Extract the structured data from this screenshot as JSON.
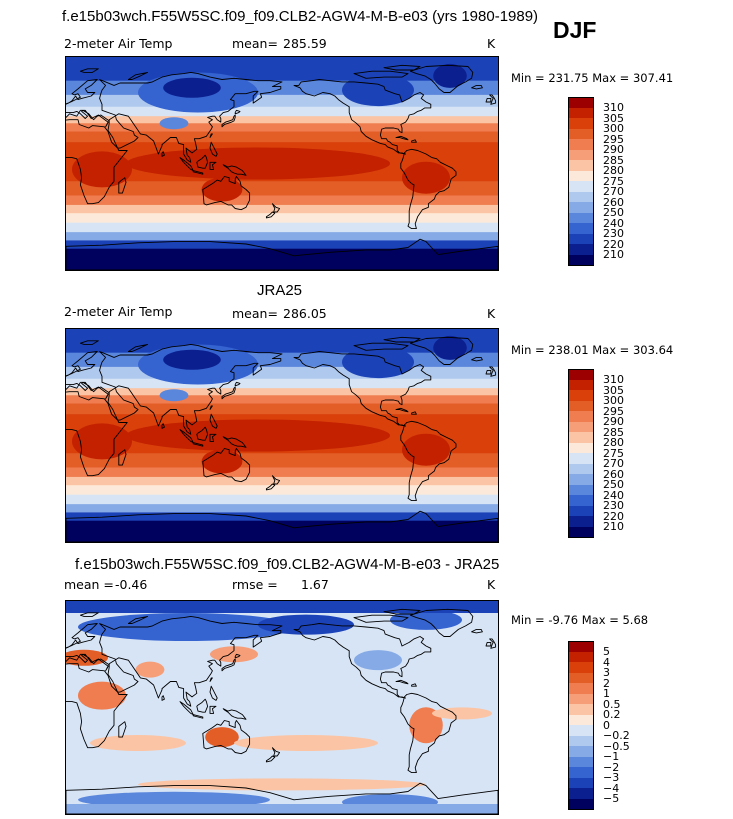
{
  "season": "DJF",
  "panels": [
    {
      "heading": "f.e15b03wch.F55W5SC.f09_f09.CLB2-AGW4-M-B-e03 (yrs 1980-1989)",
      "left_label": "2-meter Air Temp",
      "mean_label": "mean=",
      "mean_value": "285.59",
      "units": "K",
      "minmax": "Min = 231.75 Max = 307.41",
      "field": "abs"
    },
    {
      "heading": "JRA25",
      "left_label": "2-meter Air Temp",
      "mean_label": "mean=",
      "mean_value": "286.05",
      "units": "K",
      "minmax": "Min = 238.01 Max = 303.64",
      "field": "abs"
    },
    {
      "heading": "f.e15b03wch.F55W5SC.f09_f09.CLB2-AGW4-M-B-e03 - JRA25",
      "left_label": "mean =",
      "left_value": "-0.46",
      "mean_label": "rmse =",
      "mean_value": "1.67",
      "units": "K",
      "minmax": "Min =   -9.76 Max =    5.68",
      "field": "diff"
    }
  ],
  "chart_data": [
    {
      "type": "heatmap",
      "title": "2-meter Air Temp",
      "units": "K",
      "mean": 285.59,
      "min": 231.75,
      "max": 307.41,
      "colorbar_levels": [
        "310",
        "305",
        "300",
        "295",
        "290",
        "285",
        "280",
        "275",
        "270",
        "260",
        "250",
        "240",
        "230",
        "220",
        "210"
      ],
      "colorbar_colors": [
        "#9c0000",
        "#c42100",
        "#d9400a",
        "#e35d27",
        "#ef7d4f",
        "#f59e78",
        "#fbc5a5",
        "#fde9d9",
        "#d6e4f6",
        "#afc8ee",
        "#86aae6",
        "#5a86dc",
        "#3563d0",
        "#1c42b8",
        "#0b1f8e",
        "#00005e"
      ]
    },
    {
      "type": "heatmap",
      "title": "JRA25",
      "units": "K",
      "mean": 286.05,
      "min": 238.01,
      "max": 303.64,
      "colorbar_levels": [
        "310",
        "305",
        "300",
        "295",
        "290",
        "285",
        "280",
        "275",
        "270",
        "260",
        "250",
        "240",
        "230",
        "220",
        "210"
      ],
      "colorbar_colors": [
        "#9c0000",
        "#c42100",
        "#d9400a",
        "#e35d27",
        "#ef7d4f",
        "#f59e78",
        "#fbc5a5",
        "#fde9d9",
        "#d6e4f6",
        "#afc8ee",
        "#86aae6",
        "#5a86dc",
        "#3563d0",
        "#1c42b8",
        "#0b1f8e",
        "#00005e"
      ]
    },
    {
      "type": "heatmap",
      "title": "f.e15b03wch.F55W5SC.f09_f09.CLB2-AGW4-M-B-e03 - JRA25",
      "units": "K",
      "mean": -0.46,
      "rmse": 1.67,
      "min": -9.76,
      "max": 5.68,
      "colorbar_levels": [
        "5",
        "4",
        "3",
        "2",
        "1",
        "0.5",
        "0.2",
        "0",
        "−0.2",
        "−0.5",
        "−1",
        "−2",
        "−3",
        "−4",
        "−5"
      ],
      "colorbar_colors": [
        "#9c0000",
        "#c42100",
        "#d9400a",
        "#e35d27",
        "#ef7d4f",
        "#f59e78",
        "#fbc5a5",
        "#fde9d9",
        "#d6e4f6",
        "#afc8ee",
        "#86aae6",
        "#5a86dc",
        "#3563d0",
        "#1c42b8",
        "#0b1f8e",
        "#00005e"
      ]
    }
  ]
}
